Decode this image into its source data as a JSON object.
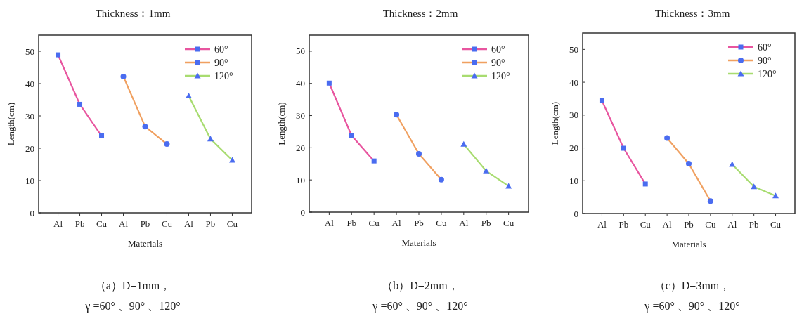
{
  "chart_data": [
    {
      "type": "line",
      "title": "Thickness：1mm",
      "xlabel": "Materials",
      "ylabel": "Length(cm)",
      "categories": [
        "Al",
        "Pb",
        "Cu",
        "Al",
        "Pb",
        "Cu",
        "Al",
        "Pb",
        "Cu"
      ],
      "ylim": [
        0,
        55
      ],
      "yticks": [
        0,
        10,
        20,
        30,
        40,
        50
      ],
      "legend": "top right",
      "grid": false,
      "line_style": "solid",
      "series": [
        {
          "name": "60°",
          "color": "#e8559f",
          "marker": "square",
          "values": [
            48.9,
            33.6,
            23.8,
            null,
            null,
            null,
            null,
            null,
            null
          ]
        },
        {
          "name": "90°",
          "color": "#f0a060",
          "marker": "circle",
          "values": [
            null,
            null,
            null,
            42.2,
            26.7,
            21.3,
            null,
            null,
            null
          ]
        },
        {
          "name": "120°",
          "color": "#a8dc70",
          "marker": "triangle",
          "values": [
            null,
            null,
            null,
            null,
            null,
            null,
            36.2,
            22.9,
            16.3
          ]
        }
      ],
      "annotations": [
        "（a）D=1mm，",
        "γ =60° 、90° 、120°"
      ]
    },
    {
      "type": "line",
      "title": "Thickness：2mm",
      "xlabel": "Materials",
      "ylabel": "Length(cm)",
      "categories": [
        "Al",
        "Pb",
        "Cu",
        "Al",
        "Pb",
        "Cu",
        "Al",
        "Pb",
        "Cu"
      ],
      "ylim": [
        0,
        55
      ],
      "yticks": [
        0,
        10,
        20,
        30,
        40,
        50
      ],
      "legend": "top right",
      "grid": false,
      "line_style": "solid",
      "series": [
        {
          "name": "60°",
          "color": "#e8559f",
          "marker": "square",
          "values": [
            40.1,
            23.8,
            15.9,
            null,
            null,
            null,
            null,
            null,
            null
          ]
        },
        {
          "name": "90°",
          "color": "#f0a060",
          "marker": "circle",
          "values": [
            null,
            null,
            null,
            30.3,
            18.1,
            10.1,
            null,
            null,
            null
          ]
        },
        {
          "name": "120°",
          "color": "#a8dc70",
          "marker": "triangle",
          "values": [
            null,
            null,
            null,
            null,
            null,
            null,
            21.1,
            12.8,
            8.1
          ]
        }
      ],
      "annotations": [
        "（b）D=2mm，",
        "γ =60° 、90° 、120°"
      ]
    },
    {
      "type": "line",
      "title": "Thickness：3mm",
      "xlabel": "Materials",
      "ylabel": "Length(cm)",
      "categories": [
        "Al",
        "Pb",
        "Cu",
        "Al",
        "Pb",
        "Cu",
        "Al",
        "Pb",
        "Cu"
      ],
      "ylim": [
        0,
        55
      ],
      "yticks": [
        0,
        10,
        20,
        30,
        40,
        50
      ],
      "legend": "top right",
      "grid": false,
      "line_style": "solid",
      "series": [
        {
          "name": "60°",
          "color": "#e8559f",
          "marker": "square",
          "values": [
            34.4,
            19.9,
            9.0,
            null,
            null,
            null,
            null,
            null,
            null
          ]
        },
        {
          "name": "90°",
          "color": "#f0a060",
          "marker": "circle",
          "values": [
            null,
            null,
            null,
            23.0,
            15.2,
            3.8,
            null,
            null,
            null
          ]
        },
        {
          "name": "120°",
          "color": "#a8dc70",
          "marker": "triangle",
          "values": [
            null,
            null,
            null,
            null,
            null,
            null,
            15.0,
            8.2,
            5.4
          ]
        }
      ],
      "annotations": [
        "（c）D=3mm，",
        "γ =60° 、90° 、120°"
      ]
    }
  ]
}
